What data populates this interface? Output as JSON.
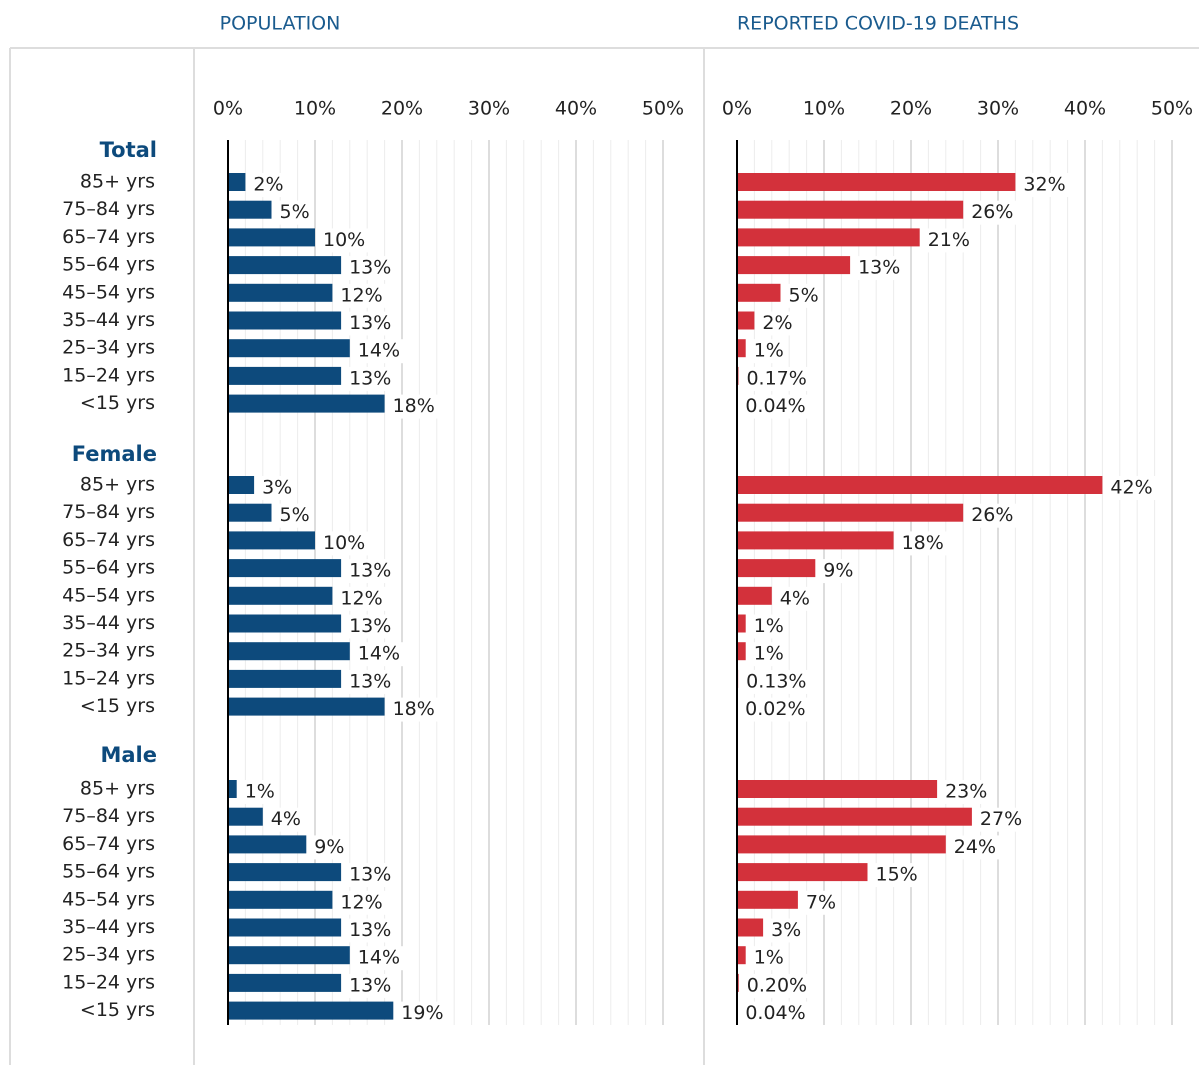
{
  "chart_data": [
    {
      "type": "bar",
      "orientation": "horizontal",
      "title": "POPULATION",
      "color": "#0d4a7c",
      "xlim": [
        0,
        50
      ],
      "xticks": [
        {
          "value": 0,
          "label": "0%"
        },
        {
          "value": 10,
          "label": "10%"
        },
        {
          "value": 20,
          "label": "20%"
        },
        {
          "value": 30,
          "label": "30%"
        },
        {
          "value": 40,
          "label": "40%"
        },
        {
          "value": 50,
          "label": "50%"
        }
      ],
      "minor_xticks": [
        2,
        4,
        6,
        8,
        12,
        14,
        16,
        18,
        22,
        24,
        26,
        28,
        32,
        34,
        36,
        38,
        42,
        44,
        46,
        48
      ],
      "grid": true,
      "groups": [
        {
          "name": "Total",
          "categories": [
            "85+ yrs",
            "75–84 yrs",
            "65–74 yrs",
            "55–64 yrs",
            "45–54 yrs",
            "35–44 yrs",
            "25–34 yrs",
            "15–24 yrs",
            "<15 yrs"
          ],
          "values": [
            2,
            5,
            10,
            13,
            12,
            13,
            14,
            13,
            18
          ],
          "value_labels": [
            "2%",
            "5%",
            "10%",
            "13%",
            "12%",
            "13%",
            "14%",
            "13%",
            "18%"
          ]
        },
        {
          "name": "Female",
          "categories": [
            "85+ yrs",
            "75–84 yrs",
            "65–74 yrs",
            "55–64 yrs",
            "45–54 yrs",
            "35–44 yrs",
            "25–34 yrs",
            "15–24 yrs",
            "<15 yrs"
          ],
          "values": [
            3,
            5,
            10,
            13,
            12,
            13,
            14,
            13,
            18
          ],
          "value_labels": [
            "3%",
            "5%",
            "10%",
            "13%",
            "12%",
            "13%",
            "14%",
            "13%",
            "18%"
          ]
        },
        {
          "name": "Male",
          "categories": [
            "85+ yrs",
            "75–84 yrs",
            "65–74 yrs",
            "55–64 yrs",
            "45–54 yrs",
            "35–44 yrs",
            "25–34 yrs",
            "15–24 yrs",
            "<15 yrs"
          ],
          "values": [
            1,
            4,
            9,
            13,
            12,
            13,
            14,
            13,
            19
          ],
          "value_labels": [
            "1%",
            "4%",
            "9%",
            "13%",
            "12%",
            "13%",
            "14%",
            "13%",
            "19%"
          ]
        }
      ]
    },
    {
      "type": "bar",
      "orientation": "horizontal",
      "title": "REPORTED COVID-19 DEATHS",
      "color": "#d3313b",
      "xlim": [
        0,
        50
      ],
      "xticks": [
        {
          "value": 0,
          "label": "0%"
        },
        {
          "value": 10,
          "label": "10%"
        },
        {
          "value": 20,
          "label": "20%"
        },
        {
          "value": 30,
          "label": "30%"
        },
        {
          "value": 40,
          "label": "40%"
        },
        {
          "value": 50,
          "label": "50%"
        }
      ],
      "minor_xticks": [
        2,
        4,
        6,
        8,
        12,
        14,
        16,
        18,
        22,
        24,
        26,
        28,
        32,
        34,
        36,
        38,
        42,
        44,
        46,
        48
      ],
      "grid": true,
      "groups": [
        {
          "values": [
            32,
            26,
            21,
            13,
            5,
            2,
            1,
            0.17,
            0.04
          ],
          "value_labels": [
            "32%",
            "26%",
            "21%",
            "13%",
            "5%",
            "2%",
            "1%",
            "0.17%",
            "0.04%"
          ]
        },
        {
          "values": [
            42,
            26,
            18,
            9,
            4,
            1,
            1,
            0.13,
            0.02
          ],
          "value_labels": [
            "42%",
            "26%",
            "18%",
            "9%",
            "4%",
            "1%",
            "1%",
            "0.13%",
            "0.02%"
          ]
        },
        {
          "values": [
            23,
            27,
            24,
            15,
            7,
            3,
            1,
            0.2,
            0.04
          ],
          "value_labels": [
            "23%",
            "27%",
            "24%",
            "15%",
            "7%",
            "3%",
            "1%",
            "0.20%",
            "0.04%"
          ]
        }
      ]
    }
  ]
}
